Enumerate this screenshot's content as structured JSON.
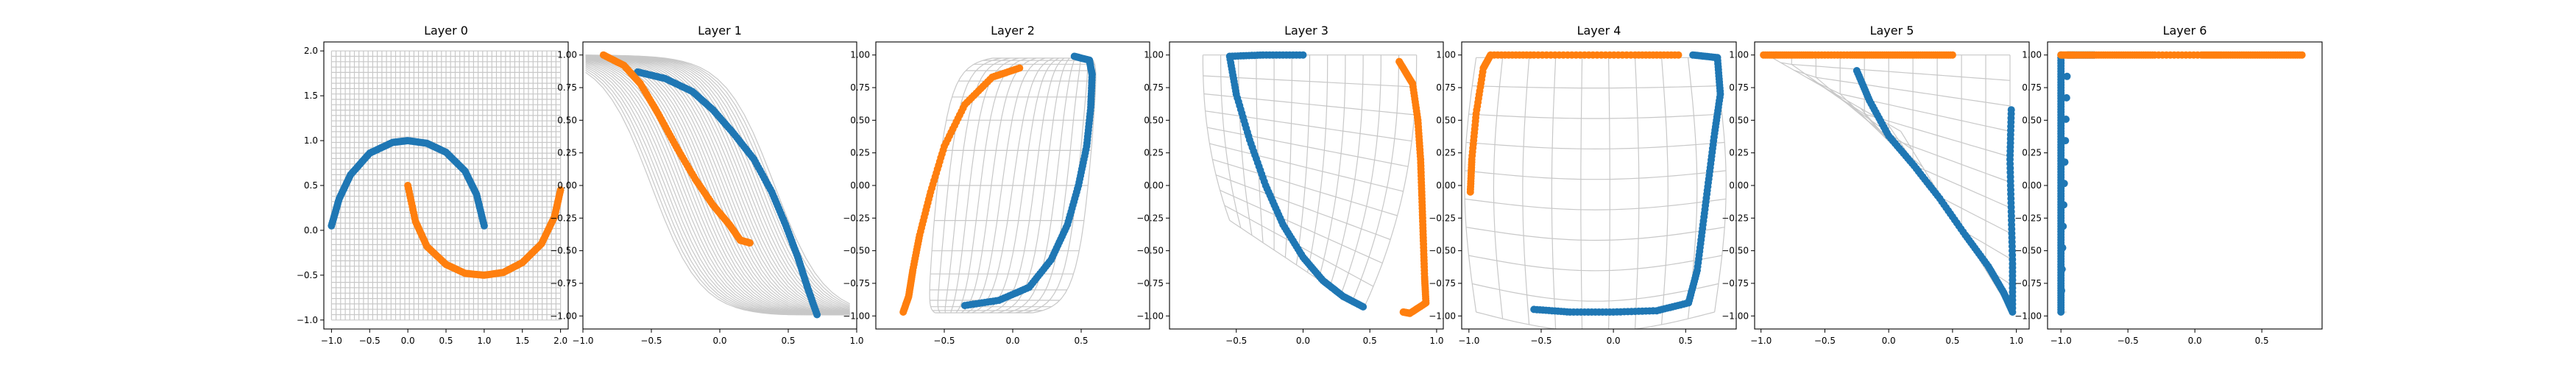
{
  "figure": {
    "colors": {
      "class_a": "#1f77b4",
      "class_b": "#ff7f0e",
      "grid": "#c8c8c8"
    }
  },
  "chart_data": [
    {
      "type": "scatter",
      "title": "Layer 0",
      "xlim": [
        -1.1,
        2.1
      ],
      "ylim": [
        -1.1,
        2.1
      ],
      "xticks": [
        -1.0,
        -0.5,
        0.0,
        0.5,
        1.0,
        1.5,
        2.0
      ],
      "xtick_labels": [
        "−1.0",
        "−0.5",
        "0.0",
        "0.5",
        "1.0",
        "1.5",
        "2.0"
      ],
      "yticks": [
        -1.0,
        -0.5,
        0.0,
        0.5,
        1.0,
        1.5,
        2.0
      ],
      "ytick_labels": [
        "−1.0",
        "−0.5",
        "0.0",
        "0.5",
        "1.0",
        "1.5",
        "2.0"
      ],
      "grid": {
        "kind": "identity",
        "range": [
          -1.0,
          2.0
        ],
        "lines": 50
      },
      "series": [
        {
          "color": "#1f77b4",
          "points": [
            [
              -1.0,
              0.05
            ],
            [
              -0.9,
              0.35
            ],
            [
              -0.75,
              0.62
            ],
            [
              -0.5,
              0.86
            ],
            [
              -0.2,
              0.98
            ],
            [
              0.0,
              1.0
            ],
            [
              0.25,
              0.97
            ],
            [
              0.5,
              0.87
            ],
            [
              0.75,
              0.66
            ],
            [
              0.9,
              0.4
            ],
            [
              1.0,
              0.05
            ]
          ]
        },
        {
          "color": "#ff7f0e",
          "points": [
            [
              0.0,
              0.5
            ],
            [
              0.1,
              0.1
            ],
            [
              0.25,
              -0.18
            ],
            [
              0.5,
              -0.38
            ],
            [
              0.75,
              -0.48
            ],
            [
              1.0,
              -0.5
            ],
            [
              1.25,
              -0.47
            ],
            [
              1.5,
              -0.36
            ],
            [
              1.75,
              -0.15
            ],
            [
              1.92,
              0.15
            ],
            [
              2.0,
              0.45
            ]
          ]
        }
      ]
    },
    {
      "type": "scatter",
      "title": "Layer 1",
      "xlim": [
        -1.0,
        1.0
      ],
      "ylim": [
        -1.1,
        1.1
      ],
      "xticks": [
        -1.0,
        -0.5,
        0.0,
        0.5,
        1.0
      ],
      "xtick_labels": [
        "−1.0",
        "−0.5",
        "0.0",
        "0.5",
        "1.0"
      ],
      "yticks": [
        -1.0,
        -0.75,
        -0.5,
        -0.25,
        0.0,
        0.25,
        0.5,
        0.75,
        1.0
      ],
      "ytick_labels": [
        "−1.00",
        "−0.75",
        "−0.50",
        "−0.25",
        "0.00",
        "0.25",
        "0.50",
        "0.75",
        "1.00"
      ],
      "grid": {
        "kind": "sigmoid-band",
        "rows": 36,
        "cols": 10,
        "x0": -0.98,
        "x1": 0.95
      },
      "series": [
        {
          "color": "#1f77b4",
          "points": [
            [
              -0.6,
              0.87
            ],
            [
              -0.4,
              0.82
            ],
            [
              -0.2,
              0.72
            ],
            [
              -0.05,
              0.58
            ],
            [
              0.1,
              0.4
            ],
            [
              0.25,
              0.2
            ],
            [
              0.38,
              -0.05
            ],
            [
              0.48,
              -0.3
            ],
            [
              0.57,
              -0.55
            ],
            [
              0.64,
              -0.78
            ],
            [
              0.71,
              -0.99
            ]
          ]
        },
        {
          "color": "#ff7f0e",
          "points": [
            [
              -0.85,
              1.0
            ],
            [
              -0.7,
              0.92
            ],
            [
              -0.58,
              0.78
            ],
            [
              -0.45,
              0.55
            ],
            [
              -0.32,
              0.3
            ],
            [
              -0.18,
              0.05
            ],
            [
              -0.05,
              -0.15
            ],
            [
              0.07,
              -0.3
            ],
            [
              0.15,
              -0.42
            ],
            [
              0.22,
              -0.44
            ]
          ]
        }
      ]
    },
    {
      "type": "scatter",
      "title": "Layer 2",
      "xlim": [
        -1.0,
        1.0
      ],
      "ylim": [
        -1.1,
        1.1
      ],
      "xticks": [
        -0.5,
        0.0,
        0.5
      ],
      "xtick_labels": [
        "−0.5",
        "0.0",
        "0.5"
      ],
      "yticks": [
        -1.0,
        -0.75,
        -0.5,
        -0.25,
        0.0,
        0.25,
        0.5,
        0.75,
        1.0
      ],
      "ytick_labels": [
        "−1.00",
        "−0.75",
        "−0.50",
        "−0.25",
        "0.00",
        "0.25",
        "0.50",
        "0.75",
        "1.00"
      ],
      "grid": {
        "kind": "lens",
        "rows": 14,
        "cols": 16
      },
      "series": [
        {
          "color": "#1f77b4",
          "points": [
            [
              0.45,
              0.99
            ],
            [
              0.56,
              0.96
            ],
            [
              0.58,
              0.85
            ],
            [
              0.57,
              0.6
            ],
            [
              0.54,
              0.3
            ],
            [
              0.48,
              0.0
            ],
            [
              0.4,
              -0.3
            ],
            [
              0.28,
              -0.57
            ],
            [
              0.12,
              -0.78
            ],
            [
              -0.1,
              -0.88
            ],
            [
              -0.35,
              -0.92
            ]
          ]
        },
        {
          "color": "#ff7f0e",
          "points": [
            [
              0.05,
              0.9
            ],
            [
              -0.15,
              0.83
            ],
            [
              -0.35,
              0.62
            ],
            [
              -0.5,
              0.3
            ],
            [
              -0.6,
              -0.05
            ],
            [
              -0.68,
              -0.38
            ],
            [
              -0.73,
              -0.65
            ],
            [
              -0.76,
              -0.85
            ],
            [
              -0.8,
              -0.97
            ]
          ]
        }
      ]
    },
    {
      "type": "scatter",
      "title": "Layer 3",
      "xlim": [
        -1.0,
        1.05
      ],
      "ylim": [
        -1.1,
        1.1
      ],
      "xticks": [
        -0.5,
        0.0,
        0.5,
        1.0
      ],
      "xtick_labels": [
        "−0.5",
        "0.0",
        "0.5",
        "1.0"
      ],
      "yticks": [
        -1.0,
        -0.75,
        -0.5,
        -0.25,
        0.0,
        0.25,
        0.5,
        0.75,
        1.0
      ],
      "ytick_labels": [
        "−1.00",
        "−0.75",
        "−0.50",
        "−0.25",
        "0.00",
        "0.25",
        "0.50",
        "0.75",
        "1.00"
      ],
      "grid": {
        "kind": "wedge",
        "rows": 12,
        "cols": 10
      },
      "series": [
        {
          "color": "#1f77b4",
          "points": [
            [
              0.0,
              1.0
            ],
            [
              -0.3,
              1.0
            ],
            [
              -0.55,
              0.99
            ],
            [
              -0.5,
              0.7
            ],
            [
              -0.4,
              0.35
            ],
            [
              -0.28,
              0.0
            ],
            [
              -0.15,
              -0.3
            ],
            [
              0.0,
              -0.55
            ],
            [
              0.15,
              -0.73
            ],
            [
              0.3,
              -0.85
            ],
            [
              0.45,
              -0.93
            ]
          ]
        },
        {
          "color": "#ff7f0e",
          "points": [
            [
              0.72,
              0.95
            ],
            [
              0.82,
              0.78
            ],
            [
              0.86,
              0.5
            ],
            [
              0.88,
              0.2
            ],
            [
              0.89,
              -0.1
            ],
            [
              0.9,
              -0.4
            ],
            [
              0.91,
              -0.7
            ],
            [
              0.92,
              -0.9
            ],
            [
              0.8,
              -0.98
            ],
            [
              0.75,
              -0.97
            ]
          ]
        }
      ]
    },
    {
      "type": "scatter",
      "title": "Layer 4",
      "xlim": [
        -1.05,
        0.85
      ],
      "ylim": [
        -1.1,
        1.1
      ],
      "xticks": [
        -1.0,
        -0.5,
        0.0,
        0.5
      ],
      "xtick_labels": [
        "−1.0",
        "−0.5",
        "0.0",
        "0.5"
      ],
      "yticks": [
        -1.0,
        -0.75,
        -0.5,
        -0.25,
        0.0,
        0.25,
        0.5,
        0.75,
        1.0
      ],
      "ytick_labels": [
        "−1.00",
        "−0.75",
        "−0.50",
        "−0.25",
        "0.00",
        "0.25",
        "0.50",
        "0.75",
        "1.00"
      ],
      "grid": {
        "kind": "box",
        "rows": 9,
        "cols": 9
      },
      "series": [
        {
          "color": "#1f77b4",
          "points": [
            [
              0.55,
              1.0
            ],
            [
              0.72,
              0.98
            ],
            [
              0.74,
              0.7
            ],
            [
              0.7,
              0.4
            ],
            [
              0.66,
              0.05
            ],
            [
              0.62,
              -0.3
            ],
            [
              0.58,
              -0.65
            ],
            [
              0.52,
              -0.9
            ],
            [
              0.3,
              -0.96
            ],
            [
              0.0,
              -0.97
            ],
            [
              -0.3,
              -0.97
            ],
            [
              -0.55,
              -0.95
            ]
          ]
        },
        {
          "color": "#ff7f0e",
          "points": [
            [
              0.45,
              1.0
            ],
            [
              0.15,
              1.0
            ],
            [
              -0.2,
              1.0
            ],
            [
              -0.55,
              1.0
            ],
            [
              -0.85,
              1.0
            ],
            [
              -0.9,
              0.9
            ],
            [
              -0.95,
              0.55
            ],
            [
              -0.98,
              0.2
            ],
            [
              -0.99,
              -0.05
            ]
          ]
        }
      ]
    },
    {
      "type": "scatter",
      "title": "Layer 5",
      "xlim": [
        -1.05,
        1.1
      ],
      "ylim": [
        -1.1,
        1.1
      ],
      "xticks": [
        -1.0,
        -0.5,
        0.0,
        0.5,
        1.0
      ],
      "xtick_labels": [
        "−1.0",
        "−0.5",
        "0.0",
        "0.5",
        "1.0"
      ],
      "yticks": [
        -1.0,
        -0.75,
        -0.5,
        -0.25,
        0.0,
        0.25,
        0.5,
        0.75,
        1.0
      ],
      "ytick_labels": [
        "−1.00",
        "−0.75",
        "−0.50",
        "−0.25",
        "0.00",
        "0.25",
        "0.50",
        "0.75",
        "1.00"
      ],
      "grid": {
        "kind": "triangle",
        "rows": 10,
        "cols": 10
      },
      "series": [
        {
          "color": "#1f77b4",
          "points": [
            [
              -0.25,
              0.88
            ],
            [
              -0.15,
              0.65
            ],
            [
              0.0,
              0.38
            ],
            [
              0.2,
              0.15
            ],
            [
              0.4,
              -0.1
            ],
            [
              0.6,
              -0.38
            ],
            [
              0.78,
              -0.62
            ],
            [
              0.9,
              -0.82
            ],
            [
              0.97,
              -0.97
            ],
            [
              0.97,
              -0.6
            ],
            [
              0.96,
              -0.2
            ],
            [
              0.95,
              0.2
            ],
            [
              0.96,
              0.58
            ]
          ]
        },
        {
          "color": "#ff7f0e",
          "points": [
            [
              -0.98,
              1.0
            ],
            [
              -0.8,
              1.0
            ],
            [
              -0.6,
              1.0
            ],
            [
              -0.3,
              1.0
            ],
            [
              -0.1,
              1.0
            ],
            [
              0.1,
              1.0
            ],
            [
              0.3,
              1.0
            ],
            [
              0.5,
              1.0
            ]
          ]
        }
      ]
    },
    {
      "type": "scatter",
      "title": "Layer 6",
      "xlim": [
        -1.1,
        0.95
      ],
      "ylim": [
        -1.1,
        1.1
      ],
      "xticks": [
        -1.0,
        -0.5,
        0.0,
        0.5
      ],
      "xtick_labels": [
        "−1.0",
        "−0.5",
        "0.0",
        "0.5"
      ],
      "yticks": [
        -1.0,
        -0.75,
        -0.5,
        -0.25,
        0.0,
        0.25,
        0.5,
        0.75,
        1.0
      ],
      "ytick_labels": [
        "−1.00",
        "−0.75",
        "−0.50",
        "−0.25",
        "0.00",
        "0.25",
        "0.50",
        "0.75",
        "1.00"
      ],
      "grid": {
        "kind": "corner",
        "rows": 6,
        "cols": 6
      },
      "series": [
        {
          "color": "#1f77b4",
          "points": [
            [
              -1.0,
              1.0
            ],
            [
              -1.0,
              0.75
            ],
            [
              -1.0,
              0.5
            ],
            [
              -1.0,
              0.25
            ],
            [
              -1.0,
              0.0
            ],
            [
              -1.0,
              -0.25
            ],
            [
              -1.0,
              -0.5
            ],
            [
              -1.0,
              -0.75
            ],
            [
              -1.0,
              -0.97
            ],
            [
              -0.95,
              1.0
            ],
            [
              -0.85,
              1.0
            ],
            [
              -0.75,
              1.0
            ]
          ]
        },
        {
          "color": "#ff7f0e",
          "points": [
            [
              -1.0,
              1.0
            ],
            [
              -0.9,
              1.0
            ],
            [
              -0.7,
              1.0
            ],
            [
              -0.5,
              1.0
            ],
            [
              -0.3,
              1.0
            ],
            [
              0.05,
              1.0
            ],
            [
              0.2,
              1.0
            ],
            [
              0.4,
              1.0
            ],
            [
              0.6,
              1.0
            ],
            [
              0.8,
              1.0
            ]
          ]
        }
      ]
    }
  ]
}
